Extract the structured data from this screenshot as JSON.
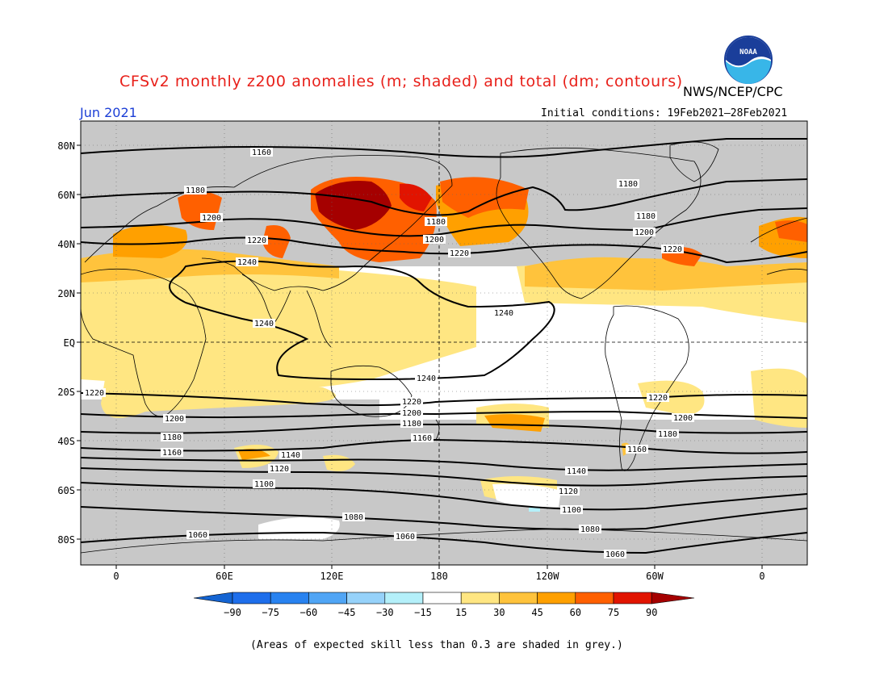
{
  "title": "CFSv2 monthly z200 anomalies (m; shaded) and total (dm; contours)",
  "agency": "NWS/NCEP/CPC",
  "logo_text": "NOAA",
  "month": "Jun 2021",
  "initial_conditions": "Initial conditions: 19Feb2021–28Feb2021",
  "note": "(Areas of expected skill less than 0.3 are shaded in grey.)",
  "lat_labels": [
    "80N",
    "60N",
    "40N",
    "20N",
    "EQ",
    "20S",
    "40S",
    "60S",
    "80S"
  ],
  "lon_labels": [
    "0",
    "60E",
    "120E",
    "180",
    "120W",
    "60W",
    "0"
  ],
  "colorbar": {
    "ticks": [
      "−90",
      "−75",
      "−60",
      "−45",
      "−30",
      "−15",
      "15",
      "30",
      "45",
      "60",
      "75",
      "90"
    ],
    "colors": [
      "#1464d2",
      "#1e6eeb",
      "#2882f0",
      "#50a5f5",
      "#96d2fa",
      "#b4f0fa",
      "#ffffff",
      "#ffe682",
      "#ffc33c",
      "#ffa000",
      "#ff6000",
      "#e11400",
      "#a50000"
    ]
  },
  "colors": {
    "skill_mask": "#c8c8c8",
    "title": "#e8201a",
    "month": "#1c3fd6"
  },
  "contour_labels": [
    {
      "text": "1160"
    },
    {
      "text": "1180"
    },
    {
      "text": "1200"
    },
    {
      "text": "1220"
    },
    {
      "text": "1240"
    },
    {
      "text": "1180"
    },
    {
      "text": "1200"
    },
    {
      "text": "1220"
    },
    {
      "text": "1240"
    },
    {
      "text": "1180"
    },
    {
      "text": "1180"
    },
    {
      "text": "1200"
    },
    {
      "text": "1220"
    },
    {
      "text": "1240"
    },
    {
      "text": "1240"
    },
    {
      "text": "1220"
    },
    {
      "text": "1220"
    },
    {
      "text": "1220"
    },
    {
      "text": "1200"
    },
    {
      "text": "1200"
    },
    {
      "text": "1200"
    },
    {
      "text": "1180"
    },
    {
      "text": "1180"
    },
    {
      "text": "1180"
    },
    {
      "text": "1160"
    },
    {
      "text": "1160"
    },
    {
      "text": "1160"
    },
    {
      "text": "1140"
    },
    {
      "text": "1140"
    },
    {
      "text": "1120"
    },
    {
      "text": "1120"
    },
    {
      "text": "1100"
    },
    {
      "text": "1100"
    },
    {
      "text": "1080"
    },
    {
      "text": "1080"
    },
    {
      "text": "1060"
    },
    {
      "text": "1060"
    },
    {
      "text": "1060"
    }
  ]
}
